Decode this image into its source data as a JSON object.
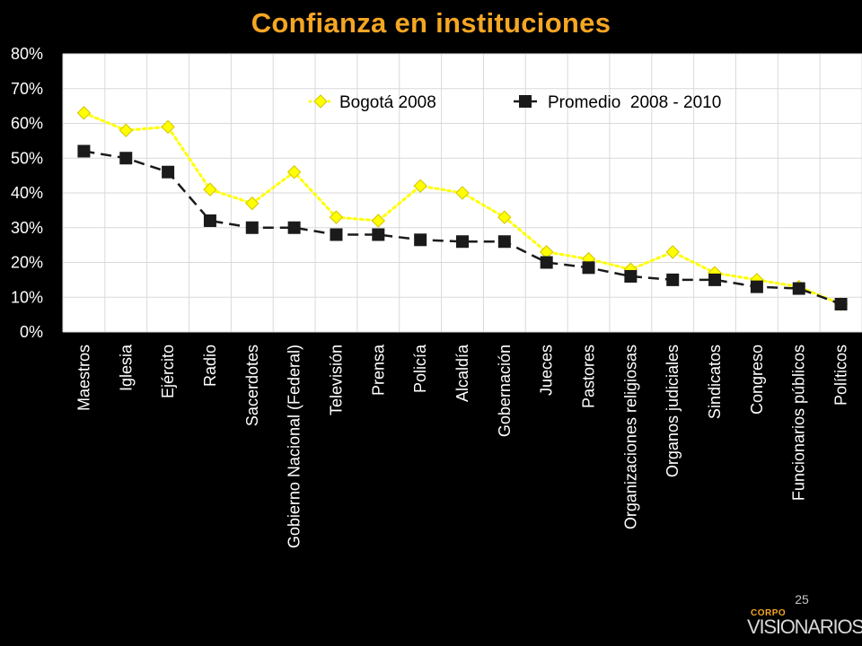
{
  "slide": {
    "title": "Confianza en instituciones",
    "page_number": "25",
    "logo": {
      "top_text": "CORPO",
      "main_text": "VISIONARIOS"
    }
  },
  "colors": {
    "background": "#000000",
    "title": "#f5a623",
    "plot_background": "#ffffff",
    "gridline": "#d9d9d9",
    "bogota_series": "#ffff00",
    "bogota_marker_edge": "#d4c400",
    "promedio_series": "#1a1a1a"
  },
  "chart_data": {
    "type": "line",
    "title": "Confianza en instituciones",
    "xlabel": "",
    "ylabel": "",
    "ylim": [
      0,
      80
    ],
    "yticks": [
      "0%",
      "10%",
      "20%",
      "30%",
      "40%",
      "50%",
      "60%",
      "70%",
      "80%"
    ],
    "grid": true,
    "legend_position": "top-right",
    "categories": [
      "Maestros",
      "Iglesia",
      "Ejército",
      "Radio",
      "Sacerdotes",
      "Gobierno Nacional (Federal)",
      "Televisión",
      "Prensa",
      "Policía",
      "Alcaldía",
      "Gobernación",
      "Jueces",
      "Pastores",
      "Organizaciones religiosas",
      "Organos judiciales",
      "Sindicatos",
      "Congreso",
      "Funcionarios públicos",
      "Políticos"
    ],
    "series": [
      {
        "name": "Bogotá 2008",
        "color": "#ffff00",
        "line_style": "dotted",
        "marker": "diamond",
        "values": [
          63,
          58,
          59,
          41,
          37,
          46,
          33,
          32,
          42,
          40,
          33,
          23,
          21,
          18,
          23,
          17,
          15,
          13,
          8
        ]
      },
      {
        "name": "Promedio  2008 - 2010",
        "color": "#1a1a1a",
        "line_style": "dashed",
        "marker": "square",
        "values": [
          52,
          50,
          46,
          32,
          30,
          30,
          28,
          28,
          26.5,
          26,
          26,
          20,
          18.5,
          16,
          15,
          15,
          13,
          12.5,
          8
        ]
      }
    ]
  }
}
